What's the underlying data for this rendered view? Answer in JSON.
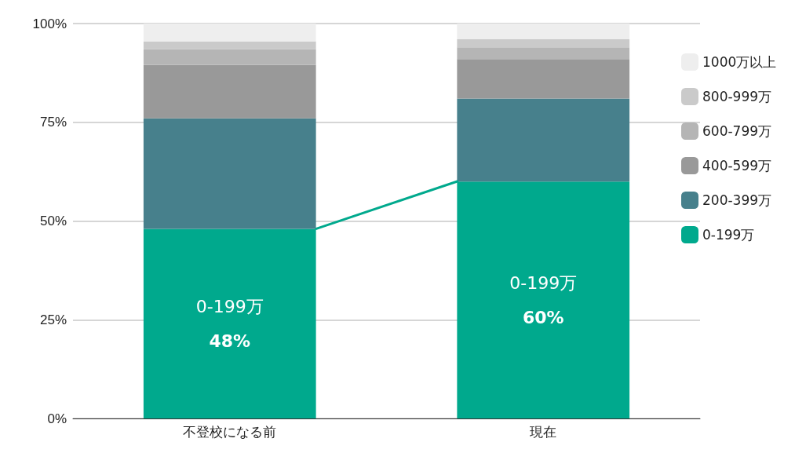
{
  "chart_data": {
    "type": "bar",
    "stacked": true,
    "categories": [
      "不登校になる前",
      "現在"
    ],
    "series": [
      {
        "name": "0-199万",
        "color": "#00a98d",
        "values": [
          48,
          60
        ],
        "value_labels": [
          "48%",
          "60%"
        ]
      },
      {
        "name": "200-399万",
        "color": "#47808c",
        "values": [
          28,
          21
        ]
      },
      {
        "name": "400-599万",
        "color": "#999999",
        "values": [
          13.5,
          10
        ]
      },
      {
        "name": "600-799万",
        "color": "#b5b5b5",
        "values": [
          4,
          3
        ]
      },
      {
        "name": "800-999万",
        "color": "#cacaca",
        "values": [
          2,
          2
        ]
      },
      {
        "name": "1000万以上",
        "color": "#eeeeee",
        "values": [
          4.5,
          4
        ]
      }
    ],
    "ylim": [
      0,
      100
    ],
    "yticks": [
      {
        "value": 0,
        "label": "0%"
      },
      {
        "value": 25,
        "label": "25%"
      },
      {
        "value": 50,
        "label": "50%"
      },
      {
        "value": 75,
        "label": "75%"
      },
      {
        "value": 100,
        "label": "100%"
      }
    ],
    "grid": "y",
    "legend": "right"
  }
}
